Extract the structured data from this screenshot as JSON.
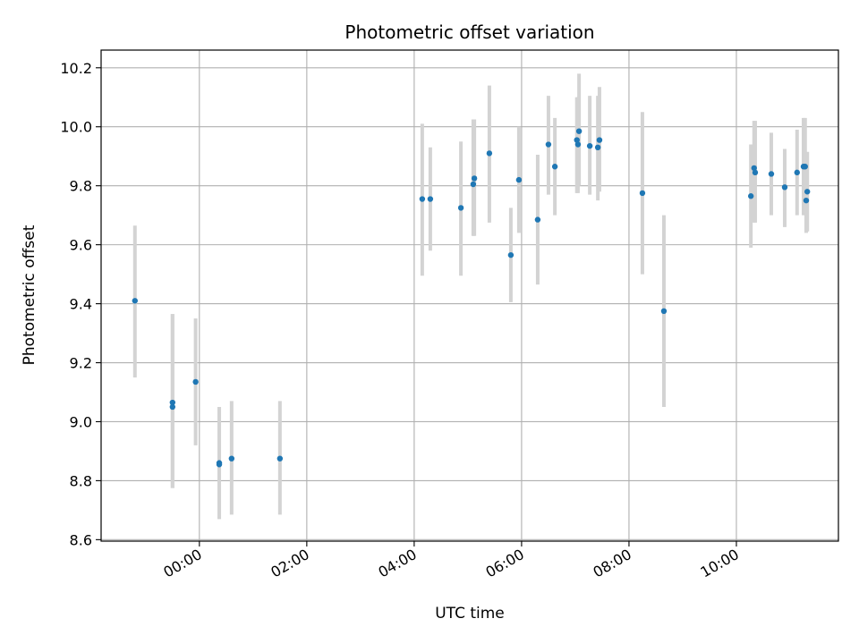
{
  "chart_data": {
    "type": "scatter",
    "title": "Photometric offset variation",
    "xlabel": "UTC time",
    "ylabel": "Photometric offset",
    "x_unit": "hours (UTC, relative to 00:00)",
    "xlim": [
      -1.83,
      11.9
    ],
    "ylim": [
      8.595,
      10.26
    ],
    "x_ticks": [
      {
        "value": 0,
        "label": "00:00"
      },
      {
        "value": 2,
        "label": "02:00"
      },
      {
        "value": 4,
        "label": "04:00"
      },
      {
        "value": 6,
        "label": "06:00"
      },
      {
        "value": 8,
        "label": "08:00"
      },
      {
        "value": 10,
        "label": "10:00"
      }
    ],
    "y_ticks": [
      {
        "value": 8.6,
        "label": "8.6"
      },
      {
        "value": 8.8,
        "label": "8.8"
      },
      {
        "value": 9.0,
        "label": "9.0"
      },
      {
        "value": 9.2,
        "label": "9.2"
      },
      {
        "value": 9.4,
        "label": "9.4"
      },
      {
        "value": 9.6,
        "label": "9.6"
      },
      {
        "value": 9.8,
        "label": "9.8"
      },
      {
        "value": 10.0,
        "label": "10.0"
      },
      {
        "value": 10.2,
        "label": "10.2"
      }
    ],
    "grid": true,
    "colors": {
      "point": "#1f77b4",
      "errorbar": "#d3d3d3",
      "grid": "#b0b0b0"
    },
    "points": [
      {
        "x": -1.2,
        "y": 9.41,
        "lo": 9.15,
        "hi": 9.665
      },
      {
        "x": -0.5,
        "y": 9.065,
        "lo": 8.775,
        "hi": 9.365
      },
      {
        "x": -0.5,
        "y": 9.05,
        "lo": 8.775,
        "hi": 9.365
      },
      {
        "x": -0.07,
        "y": 9.135,
        "lo": 8.92,
        "hi": 9.35
      },
      {
        "x": 0.37,
        "y": 8.86,
        "lo": 8.67,
        "hi": 9.05
      },
      {
        "x": 0.37,
        "y": 8.855,
        "lo": 8.67,
        "hi": 9.05
      },
      {
        "x": 0.6,
        "y": 8.875,
        "lo": 8.685,
        "hi": 9.07
      },
      {
        "x": 1.5,
        "y": 8.875,
        "lo": 8.685,
        "hi": 9.07
      },
      {
        "x": 4.15,
        "y": 9.755,
        "lo": 9.495,
        "hi": 10.01
      },
      {
        "x": 4.3,
        "y": 9.755,
        "lo": 9.58,
        "hi": 9.93
      },
      {
        "x": 4.87,
        "y": 9.725,
        "lo": 9.495,
        "hi": 9.95
      },
      {
        "x": 5.1,
        "y": 9.805,
        "lo": 9.63,
        "hi": 10.025
      },
      {
        "x": 5.12,
        "y": 9.825,
        "lo": 9.63,
        "hi": 10.025
      },
      {
        "x": 5.4,
        "y": 9.91,
        "lo": 9.675,
        "hi": 10.14
      },
      {
        "x": 5.8,
        "y": 9.565,
        "lo": 9.405,
        "hi": 9.725
      },
      {
        "x": 5.95,
        "y": 9.82,
        "lo": 9.64,
        "hi": 10.0
      },
      {
        "x": 6.3,
        "y": 9.685,
        "lo": 9.465,
        "hi": 9.905
      },
      {
        "x": 6.5,
        "y": 9.94,
        "lo": 9.77,
        "hi": 10.105
      },
      {
        "x": 6.62,
        "y": 9.865,
        "lo": 9.7,
        "hi": 10.03
      },
      {
        "x": 7.03,
        "y": 9.955,
        "lo": 9.775,
        "hi": 10.1
      },
      {
        "x": 7.05,
        "y": 9.94,
        "lo": 9.775,
        "hi": 10.1
      },
      {
        "x": 7.07,
        "y": 9.985,
        "lo": 9.8,
        "hi": 10.18
      },
      {
        "x": 7.27,
        "y": 9.935,
        "lo": 9.77,
        "hi": 10.105
      },
      {
        "x": 7.42,
        "y": 9.93,
        "lo": 9.75,
        "hi": 10.105
      },
      {
        "x": 7.45,
        "y": 9.955,
        "lo": 9.78,
        "hi": 10.135
      },
      {
        "x": 8.25,
        "y": 9.775,
        "lo": 9.5,
        "hi": 10.05
      },
      {
        "x": 8.65,
        "y": 9.375,
        "lo": 9.05,
        "hi": 9.7
      },
      {
        "x": 10.27,
        "y": 9.765,
        "lo": 9.59,
        "hi": 9.94
      },
      {
        "x": 10.33,
        "y": 9.86,
        "lo": 9.675,
        "hi": 10.02
      },
      {
        "x": 10.35,
        "y": 9.845,
        "lo": 9.675,
        "hi": 10.02
      },
      {
        "x": 10.65,
        "y": 9.84,
        "lo": 9.7,
        "hi": 9.98
      },
      {
        "x": 10.9,
        "y": 9.795,
        "lo": 9.66,
        "hi": 9.925
      },
      {
        "x": 11.13,
        "y": 9.845,
        "lo": 9.7,
        "hi": 9.99
      },
      {
        "x": 11.25,
        "y": 9.865,
        "lo": 9.7,
        "hi": 10.03
      },
      {
        "x": 11.28,
        "y": 9.865,
        "lo": 9.7,
        "hi": 10.03
      },
      {
        "x": 11.3,
        "y": 9.75,
        "lo": 9.64,
        "hi": 9.905
      },
      {
        "x": 11.32,
        "y": 9.78,
        "lo": 9.645,
        "hi": 9.915
      }
    ]
  }
}
